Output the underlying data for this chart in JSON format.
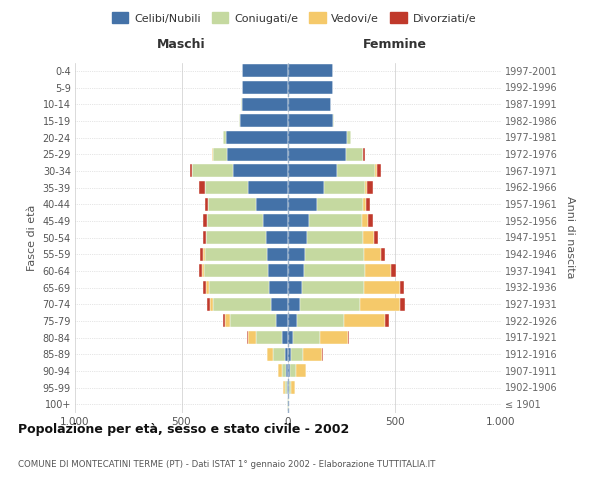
{
  "age_groups": [
    "100+",
    "95-99",
    "90-94",
    "85-89",
    "80-84",
    "75-79",
    "70-74",
    "65-69",
    "60-64",
    "55-59",
    "50-54",
    "45-49",
    "40-44",
    "35-39",
    "30-34",
    "25-29",
    "20-24",
    "15-19",
    "10-14",
    "5-9",
    "0-4"
  ],
  "birth_years": [
    "≤ 1901",
    "1902-1906",
    "1907-1911",
    "1912-1916",
    "1917-1921",
    "1922-1926",
    "1927-1931",
    "1932-1936",
    "1937-1941",
    "1942-1946",
    "1947-1951",
    "1952-1956",
    "1957-1961",
    "1962-1966",
    "1967-1971",
    "1972-1976",
    "1977-1981",
    "1982-1986",
    "1987-1991",
    "1992-1996",
    "1997-2001"
  ],
  "males_celibi": [
    2,
    4,
    8,
    15,
    30,
    55,
    80,
    88,
    95,
    100,
    103,
    118,
    150,
    190,
    260,
    285,
    290,
    225,
    215,
    215,
    215
  ],
  "males_coniugati": [
    1,
    8,
    18,
    55,
    120,
    215,
    270,
    285,
    300,
    292,
    280,
    260,
    225,
    200,
    190,
    68,
    14,
    4,
    4,
    0,
    0
  ],
  "males_vedovi": [
    1,
    10,
    20,
    28,
    38,
    28,
    18,
    13,
    7,
    5,
    4,
    3,
    2,
    2,
    2,
    2,
    0,
    0,
    0,
    0,
    0
  ],
  "males_divorziati": [
    0,
    0,
    0,
    0,
    5,
    8,
    12,
    13,
    18,
    16,
    14,
    18,
    14,
    24,
    9,
    4,
    2,
    0,
    0,
    0,
    0
  ],
  "females_nubili": [
    2,
    5,
    8,
    14,
    24,
    44,
    58,
    68,
    73,
    78,
    88,
    98,
    135,
    170,
    230,
    272,
    275,
    212,
    200,
    210,
    210
  ],
  "females_coniugate": [
    1,
    9,
    28,
    58,
    128,
    218,
    278,
    288,
    290,
    280,
    266,
    250,
    216,
    190,
    180,
    78,
    19,
    4,
    4,
    0,
    0
  ],
  "females_vedove": [
    2,
    18,
    48,
    88,
    128,
    192,
    192,
    172,
    122,
    78,
    48,
    28,
    14,
    9,
    9,
    4,
    2,
    0,
    0,
    0,
    0
  ],
  "females_divorziate": [
    0,
    0,
    2,
    3,
    8,
    19,
    19,
    16,
    23,
    18,
    20,
    23,
    18,
    32,
    16,
    7,
    2,
    0,
    0,
    0,
    0
  ],
  "color_cel": "#4472a8",
  "color_con": "#c5d9a0",
  "color_ved": "#f5c96a",
  "color_div": "#c0392b",
  "xlim": 1000,
  "title": "Popolazione per età, sesso e stato civile - 2002",
  "subtitle": "COMUNE DI MONTECATINI TERME (PT) - Dati ISTAT 1° gennaio 2002 - Elaborazione TUTTITALIA.IT",
  "ylabel_left": "Fasce di età",
  "ylabel_right": "Anni di nascita",
  "xlabel_left": "Maschi",
  "xlabel_right": "Femmine",
  "bg_color": "#ffffff",
  "grid_color": "#cccccc"
}
